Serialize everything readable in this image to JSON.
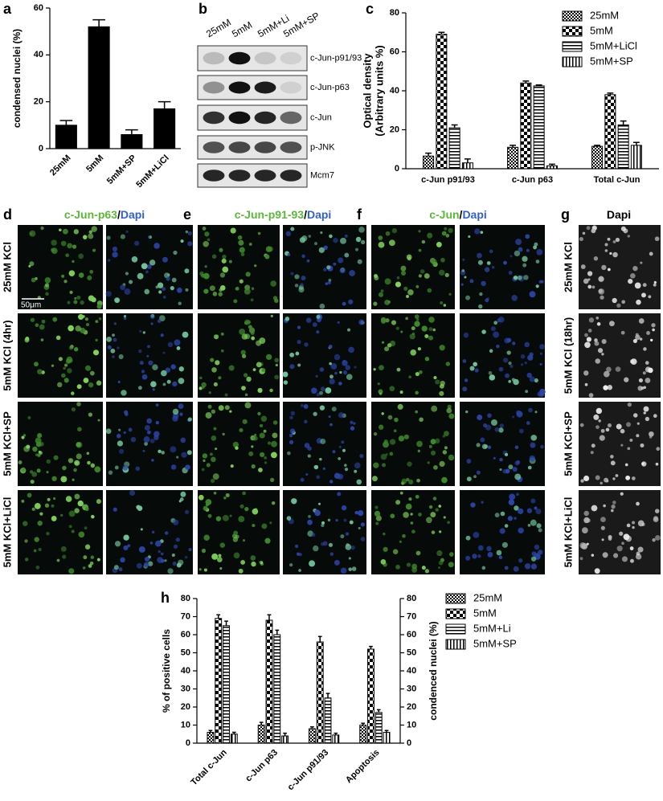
{
  "chart_data": [
    {
      "type": "bar",
      "label": "a",
      "ylabel": "condensed nuclei (%)",
      "categories": [
        "25mM",
        "5mM",
        "5mM+SP",
        "5mM+LiCl"
      ],
      "values": [
        10,
        52,
        6,
        17
      ],
      "errors": [
        2,
        3,
        2,
        3
      ],
      "color": "#000000",
      "ylim": [
        0,
        60
      ],
      "yticks": [
        0,
        20,
        40,
        60
      ]
    },
    {
      "type": "bar",
      "label": "c",
      "ylabel": [
        "Optical density",
        "(Arbitrary units %)"
      ],
      "categories": [
        "c-Jun p91/93",
        "c-Jun p63",
        "Total c-Jun"
      ],
      "series": [
        {
          "name": "25mM",
          "pattern": "checker-small",
          "values": [
            6.5,
            11,
            11.5
          ],
          "errors": [
            1.5,
            1,
            0.5
          ]
        },
        {
          "name": "5mM",
          "pattern": "checker-large",
          "values": [
            69,
            44,
            38
          ],
          "errors": [
            1,
            1,
            0.8
          ]
        },
        {
          "name": "5mM+LiCl",
          "pattern": "hlines",
          "values": [
            21,
            42.5,
            22.5
          ],
          "errors": [
            1.5,
            0.5,
            2
          ]
        },
        {
          "name": "5mM+SP",
          "pattern": "vlines",
          "values": [
            3,
            1.5,
            12
          ],
          "errors": [
            2,
            0.8,
            1.5
          ]
        }
      ],
      "ylim": [
        0,
        80
      ],
      "yticks": [
        0,
        20,
        40,
        60,
        80
      ]
    },
    {
      "type": "bar",
      "label": "h",
      "ylabel": "% of positive cells",
      "y2label": "condenced nuclei (%)",
      "categories": [
        "Total c-Jun",
        "c-Jun p63",
        "c-Jun p91/93",
        "Apoptosis"
      ],
      "series": [
        {
          "name": "25mM",
          "pattern": "checker-small",
          "values": [
            6,
            10,
            8,
            10
          ],
          "errors": [
            1,
            1.5,
            1,
            1
          ]
        },
        {
          "name": "5mM",
          "pattern": "checker-large",
          "values": [
            69,
            68,
            56,
            52
          ],
          "errors": [
            2,
            3,
            3,
            1.5
          ]
        },
        {
          "name": "5mM+Li",
          "pattern": "hlines",
          "values": [
            65,
            60,
            25,
            17
          ],
          "errors": [
            2.5,
            2.5,
            2.5,
            1.5
          ]
        },
        {
          "name": "5mM+SP",
          "pattern": "vlines",
          "values": [
            5,
            4,
            4.5,
            6
          ],
          "errors": [
            1,
            1.5,
            1,
            1
          ]
        }
      ],
      "ylim": [
        0,
        80
      ],
      "yticks": [
        0,
        10,
        20,
        30,
        40,
        50,
        60,
        70,
        80
      ],
      "y2lim": [
        0,
        80
      ],
      "y2ticks": [
        0,
        10,
        20,
        30,
        40,
        50,
        60,
        70,
        80
      ]
    }
  ],
  "blot": {
    "label": "b",
    "lanes": [
      "25mM",
      "5mM",
      "5mM+Li",
      "5mM+SP"
    ],
    "bands": [
      "c-Jun-p91/93",
      "c-Jun-p63",
      "c-Jun",
      "p-JNK",
      "Mcm7"
    ]
  },
  "micrographs": {
    "scale_bar": "50μm",
    "panels": [
      {
        "label": "d",
        "title": [
          "c-Jun-p63",
          "/",
          "Dapi"
        ],
        "rows": [
          "25mM KCl",
          "5mM KCl (4hr)",
          "5mM KCl+SP",
          "5mM KCl+LiCl"
        ]
      },
      {
        "label": "e",
        "title": [
          "c-Jun-p91-93",
          "/",
          "Dapi"
        ]
      },
      {
        "label": "f",
        "title": [
          "c-Jun",
          "/",
          "Dapi"
        ]
      },
      {
        "label": "g",
        "title": [
          "Dapi"
        ],
        "rows": [
          "25mM KCl",
          "5mM KCl (18hr)",
          "5mM KCl+SP",
          "5mM KCl+LiCl"
        ]
      }
    ]
  }
}
